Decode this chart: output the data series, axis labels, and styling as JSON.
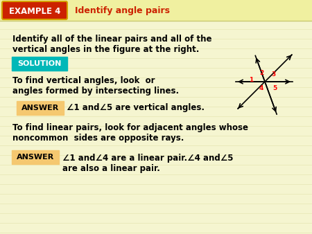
{
  "bg_color": "#f5f5d0",
  "header_bg": "#f0f0a0",
  "example_box_color": "#cc2200",
  "example_box_text": "EXAMPLE 4",
  "example_title": "Identify angle pairs",
  "example_title_color": "#cc2200",
  "solution_box_color": "#00b8b8",
  "solution_text": "SOLUTION",
  "answer_box_color": "#f5c870",
  "answer_text": "ANSWER",
  "body_text_color": "#000000",
  "line1": "Identify all of the linear pairs and all of the",
  "line2": "vertical angles in the figure at the right.",
  "line3": "To find vertical angles, look  or",
  "line4": "angles formed by intersecting lines.",
  "line5": "To find linear pairs, look for adjacent angles whose",
  "line6": "noncommon  sides are opposite rays.",
  "fig_bg": "#f5f5d0",
  "stripe_color": "#e8e8b8"
}
